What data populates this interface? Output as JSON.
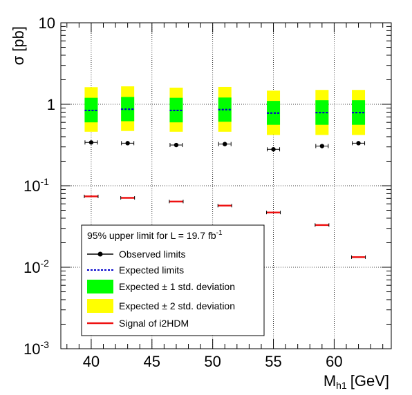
{
  "chart_data": {
    "type": "scatter",
    "yscale": "log",
    "xlabel": "M",
    "xlabel_sub": "h1",
    "xlabel_unit": "[GeV]",
    "ylabel": "σ [pb]",
    "xlim": [
      37.5,
      64.7
    ],
    "ylim": [
      0.001,
      10
    ],
    "x_ticks": [
      {
        "value": 40,
        "label": "40"
      },
      {
        "value": 45,
        "label": "45"
      },
      {
        "value": 50,
        "label": "50"
      },
      {
        "value": 55,
        "label": "55"
      },
      {
        "value": 60,
        "label": "60"
      }
    ],
    "y_ticks": [
      {
        "value": 10,
        "label": "10",
        "sup": ""
      },
      {
        "value": 1,
        "label": "1",
        "sup": ""
      },
      {
        "value": 0.1,
        "label": "10",
        "sup": "-1"
      },
      {
        "value": 0.01,
        "label": "10",
        "sup": "-2"
      },
      {
        "value": 0.001,
        "label": "10",
        "sup": "-3"
      }
    ],
    "grid": true,
    "x": [
      40,
      43,
      47,
      51,
      55,
      59,
      62
    ],
    "series": [
      {
        "name": "Observed limits",
        "color": "#000000",
        "values": [
          0.34,
          0.333,
          0.316,
          0.325,
          0.28,
          0.307,
          0.333
        ]
      },
      {
        "name": "Expected limits",
        "color": "#0000cc",
        "values": [
          0.84,
          0.87,
          0.84,
          0.86,
          0.78,
          0.79,
          0.79
        ]
      },
      {
        "name": "Expected ± 1 std. deviation",
        "color": "#00ff00",
        "low": [
          0.6,
          0.62,
          0.6,
          0.61,
          0.56,
          0.56,
          0.56
        ],
        "high": [
          1.2,
          1.23,
          1.2,
          1.21,
          1.1,
          1.12,
          1.12
        ]
      },
      {
        "name": "Expected ± 2 std. deviation",
        "color": "#ffff00",
        "low": [
          0.46,
          0.47,
          0.46,
          0.46,
          0.42,
          0.42,
          0.42
        ],
        "high": [
          1.62,
          1.66,
          1.6,
          1.63,
          1.47,
          1.5,
          1.5
        ]
      },
      {
        "name": "Signal of i2HDM",
        "color": "#ee1111",
        "values": [
          0.074,
          0.071,
          0.064,
          0.057,
          0.047,
          0.033,
          0.0133
        ]
      }
    ],
    "legend_title": "95% upper limit for L = 19.7 fb",
    "legend_title_sup": "-1",
    "legend_placement": "bottom-left"
  }
}
